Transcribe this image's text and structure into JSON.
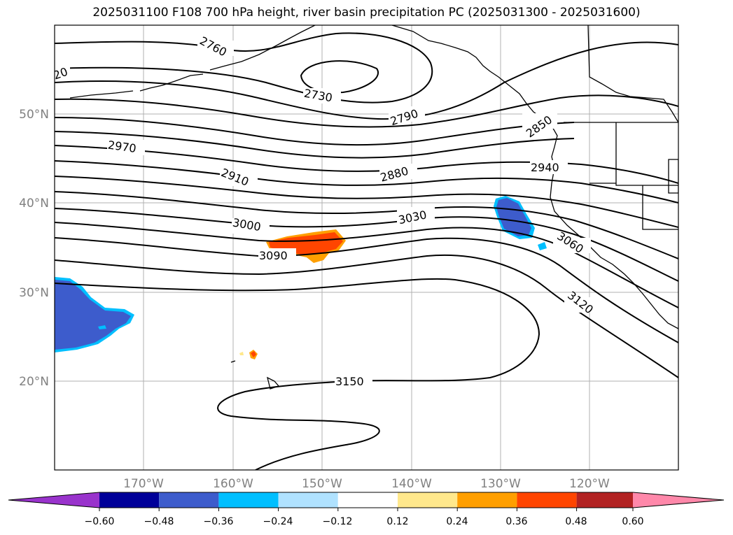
{
  "title": "2025031100 F108 700 hPa height, river basin precipitation PC (2025031300 - 2025031600)",
  "lat_labels": [
    "50°N",
    "40°N",
    "30°N",
    "20°N"
  ],
  "lon_labels": [
    "170°W",
    "160°W",
    "150°W",
    "140°W",
    "130°W",
    "120°W"
  ],
  "contour_labels": [
    "20",
    "2760",
    "2730",
    "2790",
    "2850",
    "2970",
    "2940",
    "2910",
    "2880",
    "3030",
    "3000",
    "3090",
    "3060",
    "3120",
    "3150"
  ],
  "colorbar": {
    "ticks": [
      "−0.60",
      "−0.48",
      "−0.36",
      "−0.24",
      "−0.12",
      "0.12",
      "0.24",
      "0.36",
      "0.48",
      "0.60"
    ],
    "colors": [
      "#9933cc",
      "#000099",
      "#3d5ccc",
      "#00bfff",
      "#b0e2ff",
      "#ffffff",
      "#ffe88c",
      "#ff9f00",
      "#ff4500",
      "#b22222",
      "#ff88aa"
    ]
  },
  "colors": {
    "contour": "#000000",
    "gridline": "#b0b0b0",
    "axis_label": "#808080",
    "negative_anomaly": "#3d5ccc",
    "positive_anomaly": "#ff4500"
  }
}
